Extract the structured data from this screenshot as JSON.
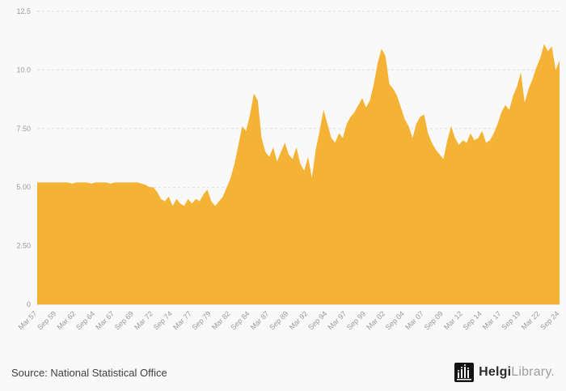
{
  "chart_data": {
    "type": "area",
    "title": "",
    "xlabel": "",
    "ylabel": "",
    "color": "#f5b335",
    "background": "#f9f9f9",
    "grid": "horizontal-dashed",
    "legend": "none",
    "ylim": [
      0,
      12.5
    ],
    "yticks": [
      {
        "value": 0,
        "label": "0"
      },
      {
        "value": 2.5,
        "label": "2.50"
      },
      {
        "value": 5,
        "label": "5.00"
      },
      {
        "value": 7.5,
        "label": "7.50"
      },
      {
        "value": 10,
        "label": "10.0"
      },
      {
        "value": 12.5,
        "label": "12.5"
      }
    ],
    "xticks": [
      "Mar 57",
      "Sep 59",
      "Mar 62",
      "Sep 64",
      "Mar 67",
      "Sep 69",
      "Mar 72",
      "Sep 74",
      "Mar 77",
      "Sep 79",
      "Mar 82",
      "Sep 84",
      "Mar 87",
      "Sep 89",
      "Mar 92",
      "Sep 94",
      "Mar 97",
      "Sep 99",
      "Mar 02",
      "Sep 04",
      "Mar 07",
      "Sep 09",
      "Mar 12",
      "Sep 14",
      "Mar 17",
      "Sep 19",
      "Mar 22",
      "Sep 24"
    ],
    "xtick_step": 5,
    "x_frequency": "semiannual, Mar 1957 - Sep 2024",
    "values": [
      5.2,
      5.2,
      5.2,
      5.2,
      5.2,
      5.2,
      5.2,
      5.2,
      5.2,
      5.15,
      5.2,
      5.2,
      5.2,
      5.2,
      5.15,
      5.2,
      5.2,
      5.2,
      5.2,
      5.15,
      5.2,
      5.2,
      5.2,
      5.2,
      5.2,
      5.2,
      5.2,
      5.15,
      5.1,
      5.0,
      5.0,
      4.8,
      4.5,
      4.4,
      4.6,
      4.2,
      4.5,
      4.3,
      4.2,
      4.5,
      4.3,
      4.5,
      4.4,
      4.7,
      4.9,
      4.4,
      4.2,
      4.4,
      4.6,
      5.0,
      5.4,
      6.0,
      6.8,
      7.6,
      7.4,
      8.1,
      9.0,
      8.7,
      7.1,
      6.5,
      6.3,
      6.7,
      6.1,
      6.5,
      6.9,
      6.4,
      6.2,
      6.7,
      6.0,
      5.7,
      6.3,
      5.4,
      6.6,
      7.4,
      8.3,
      7.7,
      7.1,
      6.9,
      7.3,
      7.1,
      7.7,
      8.0,
      8.2,
      8.5,
      8.8,
      8.4,
      8.7,
      9.4,
      10.3,
      10.9,
      10.6,
      9.4,
      9.2,
      8.9,
      8.4,
      7.9,
      7.6,
      7.1,
      7.7,
      8.0,
      8.1,
      7.3,
      6.9,
      6.6,
      6.4,
      6.2,
      7.0,
      7.6,
      7.1,
      6.8,
      7.0,
      6.9,
      7.3,
      7.0,
      7.1,
      7.4,
      6.9,
      7.0,
      7.3,
      7.7,
      8.2,
      8.5,
      8.3,
      8.9,
      9.3,
      9.9,
      8.6,
      9.2,
      9.6,
      10.1,
      10.5,
      11.1,
      10.8,
      11.0,
      10.0,
      10.4
    ]
  },
  "footer": {
    "source": "Source: National Statistical Office",
    "brand_primary": "Helgi",
    "brand_secondary": "Library",
    "brand_period": "."
  }
}
